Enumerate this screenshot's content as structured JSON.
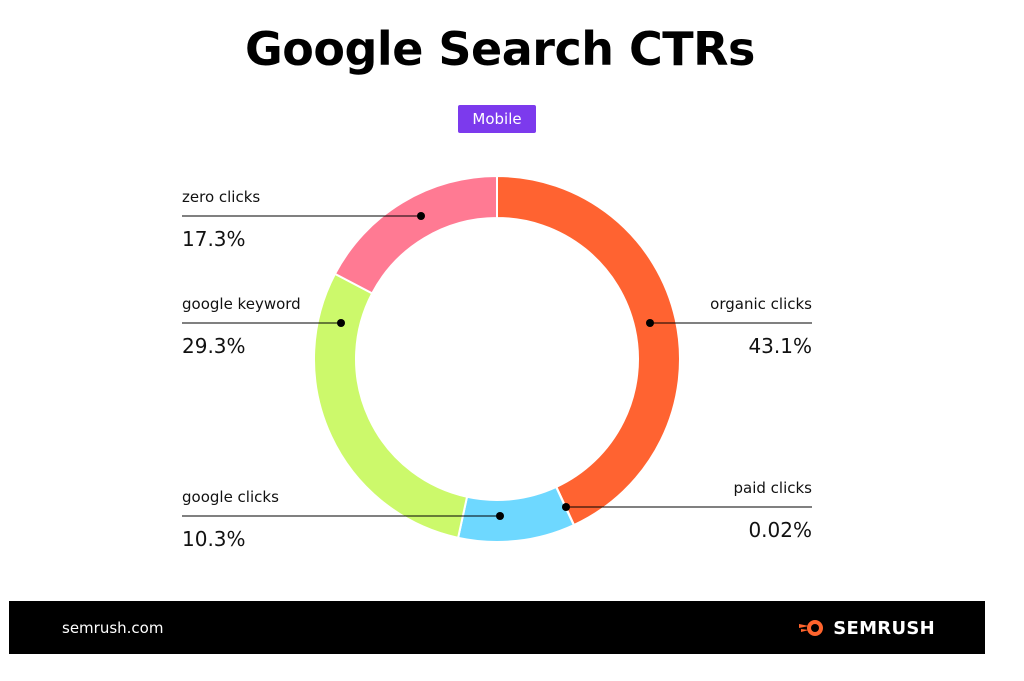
{
  "header": {
    "title": "Google Search CTRs",
    "badge": "Mobile"
  },
  "chart_data": {
    "type": "donut",
    "title": "Google Search CTRs",
    "subtitle": "Mobile",
    "slices": [
      {
        "label": "organic clicks",
        "value": 43.1,
        "value_label": "43.1%",
        "color": "#ff6331"
      },
      {
        "label": "paid clicks",
        "value": 0.02,
        "value_label": "0.02%",
        "color": "#ff6331"
      },
      {
        "label": "google clicks",
        "value": 10.3,
        "value_label": "10.3%",
        "color": "#6ed8ff"
      },
      {
        "label": "google keyword",
        "value": 29.3,
        "value_label": "29.3%",
        "color": "#ccf96b"
      },
      {
        "label": "zero clicks",
        "value": 17.3,
        "value_label": "17.3%",
        "color": "#ff7a93"
      }
    ]
  },
  "footer": {
    "url": "semrush.com",
    "brand": "SEMRUSH",
    "brand_icon": "semrush-flame-icon",
    "background": "#000000"
  }
}
